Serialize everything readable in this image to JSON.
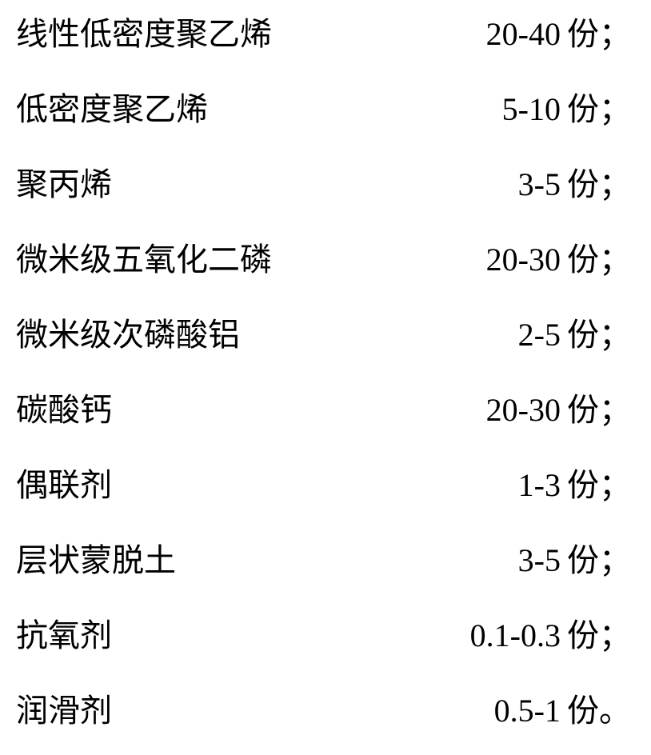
{
  "table": {
    "font_family": "SimSun",
    "font_size": 40,
    "text_color": "#000000",
    "background_color": "#ffffff",
    "unit_label": "份",
    "rows": [
      {
        "name": "线性低密度聚乙烯",
        "amount": "20-40",
        "punct": "；"
      },
      {
        "name": "低密度聚乙烯",
        "amount": "5-10",
        "punct": "；"
      },
      {
        "name": "聚丙烯",
        "amount": "3-5",
        "punct": "；"
      },
      {
        "name": "微米级五氧化二磷",
        "amount": "20-30",
        "punct": "；"
      },
      {
        "name": "微米级次磷酸铝",
        "amount": "2-5",
        "punct": "；"
      },
      {
        "name": "碳酸钙",
        "amount": "20-30",
        "punct": "；"
      },
      {
        "name": "偶联剂",
        "amount": "1-3",
        "punct": "；"
      },
      {
        "name": "层状蒙脱土",
        "amount": "3-5",
        "punct": "；"
      },
      {
        "name": "抗氧剂",
        "amount": "0.1-0.3",
        "punct": "；"
      },
      {
        "name": "润滑剂",
        "amount": "0.5-1",
        "punct": "。"
      }
    ]
  }
}
